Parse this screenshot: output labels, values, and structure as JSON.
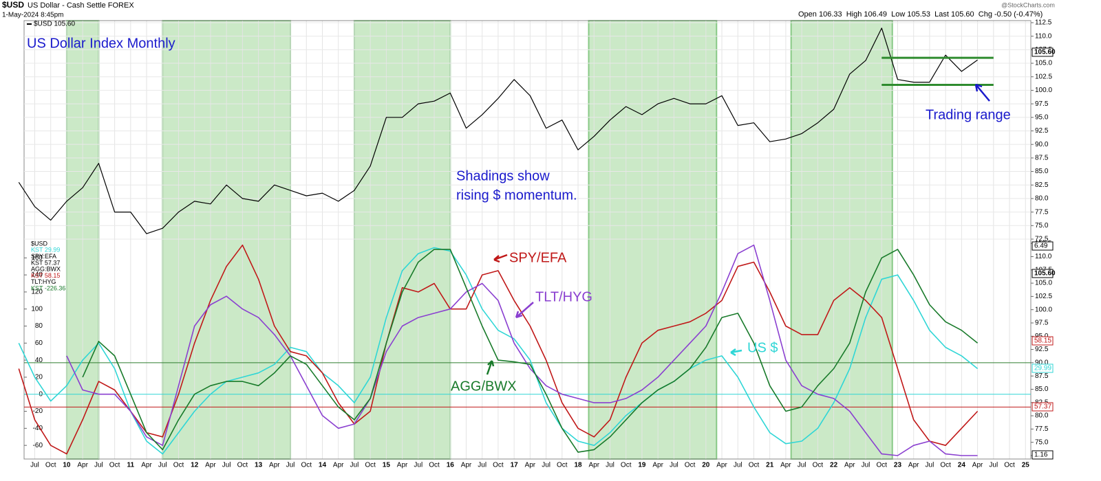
{
  "header": {
    "symbol": "$USD",
    "name": "US Dollar - Cash Settle FOREX",
    "date": "1-May-2024 8:45pm",
    "quote": "Open 106.33  High 106.49  Low 105.53  Last 105.60  Chg -0.50 (-0.47%)",
    "source": "@StockCharts.com"
  },
  "chart_data": [
    {
      "type": "line",
      "title": "US Dollar Index Monthly",
      "x": [
        "2009-04",
        "2009-07",
        "2009-10",
        "2010-01",
        "2010-04",
        "2010-07",
        "2010-10",
        "2011-01",
        "2011-04",
        "2011-07",
        "2011-10",
        "2012-01",
        "2012-04",
        "2012-07",
        "2012-10",
        "2013-01",
        "2013-04",
        "2013-07",
        "2013-10",
        "2014-01",
        "2014-04",
        "2014-07",
        "2014-10",
        "2015-01",
        "2015-04",
        "2015-07",
        "2015-10",
        "2016-01",
        "2016-04",
        "2016-07",
        "2016-10",
        "2017-01",
        "2017-04",
        "2017-07",
        "2017-10",
        "2018-01",
        "2018-04",
        "2018-07",
        "2018-10",
        "2019-01",
        "2019-04",
        "2019-07",
        "2019-10",
        "2020-01",
        "2020-04",
        "2020-07",
        "2020-10",
        "2021-01",
        "2021-04",
        "2021-07",
        "2021-10",
        "2022-01",
        "2022-04",
        "2022-07",
        "2022-10",
        "2023-01",
        "2023-04",
        "2023-07",
        "2023-10",
        "2024-01",
        "2024-04"
      ],
      "series": [
        {
          "name": "$USD 105.60",
          "color": "#000000",
          "values": [
            83,
            78.5,
            76,
            79.5,
            82,
            86.5,
            77.5,
            77.5,
            73.5,
            74.5,
            77.5,
            79.5,
            79,
            82.5,
            80,
            79.5,
            82.5,
            81.5,
            80.5,
            81,
            79.5,
            81.5,
            86,
            95,
            95,
            97.5,
            98,
            99.5,
            93,
            95.5,
            98.5,
            102,
            99,
            93,
            94.5,
            89,
            91.5,
            94.5,
            97,
            95.5,
            97.5,
            98.5,
            97.5,
            97.5,
            99,
            93.5,
            94,
            90.5,
            91,
            92,
            94,
            96.5,
            103,
            105.5,
            111.5,
            102,
            101.5,
            101.5,
            106.5,
            103.5,
            105.6
          ]
        }
      ],
      "xlim": [
        "2009-05",
        "2025-02"
      ],
      "ylim": [
        72.5,
        112.88
      ],
      "yticks": [
        72.5,
        {
          "value": 75,
          "label": "75.0"
        },
        77.5,
        {
          "value": 80,
          "label": "80.0"
        },
        82.5,
        {
          "value": 85,
          "label": "85.0"
        },
        87.5,
        {
          "value": 90,
          "label": "90.0"
        },
        92.5,
        {
          "value": 95,
          "label": "95.0"
        },
        97.5,
        {
          "value": 100,
          "label": "100.0"
        },
        102.5,
        {
          "value": 105,
          "label": "105.0"
        },
        107.5,
        {
          "value": 110,
          "label": "110.0"
        },
        112.5
      ],
      "grid": true,
      "shadings": [
        [
          "2010-01",
          "2010-07"
        ],
        [
          "2011-07",
          "2013-07"
        ],
        [
          "2014-07",
          "2016-01"
        ],
        [
          "2018-03",
          "2020-03"
        ],
        [
          "2021-05",
          "2022-12"
        ]
      ],
      "shading_color": "#c6e7c1",
      "range_levels": [
        106,
        101
      ],
      "range_x": [
        "2022-10",
        "2024-07"
      ],
      "range_color": "#2e8b2e",
      "annotations": [
        "Shadings show",
        "rising $ momentum.",
        "Trading range"
      ],
      "annotation_color": "#1a1acc",
      "tags": [
        "105.60"
      ]
    },
    {
      "type": "line",
      "x": [
        "2009-04",
        "2009-07",
        "2009-10",
        "2010-01",
        "2010-04",
        "2010-07",
        "2010-10",
        "2011-01",
        "2011-04",
        "2011-07",
        "2011-10",
        "2012-01",
        "2012-04",
        "2012-07",
        "2012-10",
        "2013-01",
        "2013-04",
        "2013-07",
        "2013-10",
        "2014-01",
        "2014-04",
        "2014-07",
        "2014-10",
        "2015-01",
        "2015-04",
        "2015-07",
        "2015-10",
        "2016-01",
        "2016-04",
        "2016-07",
        "2016-10",
        "2017-01",
        "2017-04",
        "2017-07",
        "2017-10",
        "2018-01",
        "2018-04",
        "2018-07",
        "2018-10",
        "2019-01",
        "2019-04",
        "2019-07",
        "2019-10",
        "2020-01",
        "2020-04",
        "2020-07",
        "2020-10",
        "2021-01",
        "2021-04",
        "2021-07",
        "2021-10",
        "2022-01",
        "2022-04",
        "2022-07",
        "2022-10",
        "2023-01",
        "2023-04",
        "2023-07",
        "2023-10",
        "2024-01",
        "2024-04"
      ],
      "series": [
        {
          "name": "US $",
          "color": "#2fd6d6",
          "values": [
            60,
            20,
            -8,
            10,
            40,
            60,
            30,
            -20,
            -55,
            -70,
            -45,
            -20,
            0,
            15,
            20,
            25,
            35,
            55,
            50,
            25,
            10,
            -10,
            20,
            90,
            145,
            165,
            172,
            168,
            140,
            100,
            75,
            65,
            40,
            -10,
            -40,
            -55,
            -60,
            -45,
            -25,
            -10,
            5,
            15,
            30,
            40,
            45,
            20,
            -15,
            -45,
            -58,
            -55,
            -40,
            -10,
            30,
            90,
            135,
            140,
            110,
            75,
            55,
            45,
            30
          ]
        },
        {
          "name": "SPY/EFA",
          "color": "#c01818",
          "values": [
            30,
            -30,
            -60,
            -70,
            -30,
            15,
            5,
            -20,
            -45,
            -50,
            0,
            60,
            110,
            150,
            175,
            135,
            80,
            50,
            45,
            25,
            -10,
            -35,
            -20,
            60,
            125,
            120,
            130,
            100,
            100,
            140,
            145,
            110,
            80,
            40,
            -10,
            -40,
            -50,
            -30,
            20,
            60,
            75,
            80,
            85,
            95,
            110,
            150,
            155,
            120,
            80,
            70,
            70,
            110,
            125,
            110,
            90,
            30,
            -30,
            -55,
            -60,
            -40,
            -20
          ]
        },
        {
          "name": "TLT/HYG",
          "color": "#8a3fd0",
          "values": [
            null,
            null,
            null,
            45,
            5,
            0,
            0,
            -20,
            -50,
            -60,
            10,
            80,
            105,
            115,
            100,
            90,
            70,
            45,
            10,
            -25,
            -40,
            -35,
            -5,
            50,
            80,
            90,
            95,
            100,
            120,
            130,
            110,
            60,
            30,
            10,
            0,
            -5,
            -10,
            -10,
            -5,
            5,
            20,
            40,
            60,
            80,
            120,
            165,
            175,
            110,
            40,
            10,
            0,
            -5,
            -20,
            -45,
            -70,
            -72,
            -60,
            -55,
            -70,
            -72,
            -72
          ]
        },
        {
          "name": "AGG/BWX",
          "color": "#187a2a",
          "values": [
            null,
            null,
            null,
            null,
            20,
            62,
            45,
            0,
            -45,
            -65,
            -30,
            0,
            10,
            15,
            15,
            10,
            25,
            45,
            35,
            10,
            -15,
            -30,
            -5,
            60,
            120,
            155,
            170,
            170,
            125,
            80,
            40,
            38,
            35,
            0,
            -40,
            -68,
            -65,
            -50,
            -30,
            -10,
            5,
            15,
            30,
            55,
            90,
            95,
            60,
            10,
            -20,
            -15,
            10,
            30,
            60,
            120,
            160,
            170,
            140,
            105,
            85,
            75,
            60
          ]
        }
      ],
      "xlim": [
        "2009-05",
        "2025-02"
      ],
      "ylim": [
        -76,
        182
      ],
      "yticks": [
        -60,
        -40,
        -20,
        0,
        20,
        40,
        60,
        80,
        100,
        120,
        140,
        160
      ],
      "y2lim": [
        71.85,
        113.3
      ],
      "y2ticks": [
        72.5,
        {
          "value": 75,
          "label": "75.0"
        },
        77.5,
        {
          "value": 80,
          "label": "80.0"
        },
        82.5,
        {
          "value": 85,
          "label": "85.0"
        },
        87.5,
        {
          "value": 90,
          "label": "90.0"
        },
        92.5,
        {
          "value": 95,
          "label": "95.0"
        },
        97.5,
        {
          "value": 100,
          "label": "100.0"
        },
        102.5,
        {
          "value": 105,
          "label": "105.0"
        },
        107.5,
        {
          "value": 110,
          "label": "110.0"
        },
        112.5
      ],
      "levels": [
        {
          "value": 37,
          "color": "#2e7d2e"
        },
        {
          "value": 0,
          "color": "#2fd6d6"
        },
        {
          "value": -15,
          "color": "#c01818"
        }
      ],
      "legend": [
        {
          "text": "$USD",
          "color": "#000000"
        },
        {
          "text": "KST 29.99",
          "color": "#2fd6d6"
        },
        {
          "text": "SPY:EFA",
          "color": "#000000"
        },
        {
          "text": "KST 57.37",
          "color": "#000000"
        },
        {
          "text": "AGG:BWX",
          "color": "#000000"
        },
        {
          "text": "KST 58.15",
          "color": "#c01818"
        },
        {
          "text": "TLT:HYG",
          "color": "#000000"
        },
        {
          "text": "KST -226.36",
          "color": "#187a2a"
        }
      ],
      "tags": [
        {
          "text": "6.49",
          "color": "#000000"
        },
        {
          "text": "105.60",
          "color": "#000000"
        },
        {
          "text": "58.15",
          "color": "#c01818"
        },
        {
          "text": "29.99",
          "color": "#2fd6d6"
        },
        {
          "text": "57.37",
          "color": "#c01818"
        },
        {
          "text": "1.16",
          "color": "#000000"
        }
      ],
      "xticks": [
        {
          "value": "2009-07",
          "label": "Jul"
        },
        {
          "value": "2009-10",
          "label": "Oct"
        },
        {
          "value": "2010-01",
          "label": "10"
        },
        {
          "value": "2010-04",
          "label": "Apr"
        },
        {
          "value": "2010-07",
          "label": "Jul"
        },
        {
          "value": "2010-10",
          "label": "Oct"
        },
        {
          "value": "2011-01",
          "label": "11"
        },
        {
          "value": "2011-04",
          "label": "Apr"
        },
        {
          "value": "2011-07",
          "label": "Jul"
        },
        {
          "value": "2011-10",
          "label": "Oct"
        },
        {
          "value": "2012-01",
          "label": "12"
        },
        {
          "value": "2012-04",
          "label": "Apr"
        },
        {
          "value": "2012-07",
          "label": "Jul"
        },
        {
          "value": "2012-10",
          "label": "Oct"
        },
        {
          "value": "2013-01",
          "label": "13"
        },
        {
          "value": "2013-04",
          "label": "Apr"
        },
        {
          "value": "2013-07",
          "label": "Jul"
        },
        {
          "value": "2013-10",
          "label": "Oct"
        },
        {
          "value": "2014-01",
          "label": "14"
        },
        {
          "value": "2014-04",
          "label": "Apr"
        },
        {
          "value": "2014-07",
          "label": "Jul"
        },
        {
          "value": "2014-10",
          "label": "Oct"
        },
        {
          "value": "2015-01",
          "label": "15"
        },
        {
          "value": "2015-04",
          "label": "Apr"
        },
        {
          "value": "2015-07",
          "label": "Jul"
        },
        {
          "value": "2015-10",
          "label": "Oct"
        },
        {
          "value": "2016-01",
          "label": "16"
        },
        {
          "value": "2016-04",
          "label": "Apr"
        },
        {
          "value": "2016-07",
          "label": "Jul"
        },
        {
          "value": "2016-10",
          "label": "Oct"
        },
        {
          "value": "2017-01",
          "label": "17"
        },
        {
          "value": "2017-04",
          "label": "Apr"
        },
        {
          "value": "2017-07",
          "label": "Jul"
        },
        {
          "value": "2017-10",
          "label": "Oct"
        },
        {
          "value": "2018-01",
          "label": "18"
        },
        {
          "value": "2018-04",
          "label": "Apr"
        },
        {
          "value": "2018-07",
          "label": "Jul"
        },
        {
          "value": "2018-10",
          "label": "Oct"
        },
        {
          "value": "2019-01",
          "label": "19"
        },
        {
          "value": "2019-04",
          "label": "Apr"
        },
        {
          "value": "2019-07",
          "label": "Jul"
        },
        {
          "value": "2019-10",
          "label": "Oct"
        },
        {
          "value": "2020-01",
          "label": "20"
        },
        {
          "value": "2020-04",
          "label": "Apr"
        },
        {
          "value": "2020-07",
          "label": "Jul"
        },
        {
          "value": "2020-10",
          "label": "Oct"
        },
        {
          "value": "2021-01",
          "label": "21"
        },
        {
          "value": "2021-04",
          "label": "Apr"
        },
        {
          "value": "2021-07",
          "label": "Jul"
        },
        {
          "value": "2021-10",
          "label": "Oct"
        },
        {
          "value": "2022-01",
          "label": "22"
        },
        {
          "value": "2022-04",
          "label": "Apr"
        },
        {
          "value": "2022-07",
          "label": "Jul"
        },
        {
          "value": "2022-10",
          "label": "Oct"
        },
        {
          "value": "2023-01",
          "label": "23"
        },
        {
          "value": "2023-04",
          "label": "Apr"
        },
        {
          "value": "2023-07",
          "label": "Jul"
        },
        {
          "value": "2023-10",
          "label": "Oct"
        },
        {
          "value": "2024-01",
          "label": "24"
        },
        {
          "value": "2024-04",
          "label": "Apr"
        },
        {
          "value": "2024-07",
          "label": "Jul"
        },
        {
          "value": "2024-10",
          "label": "Oct"
        },
        {
          "value": "2025-01",
          "label": "25"
        }
      ]
    }
  ]
}
